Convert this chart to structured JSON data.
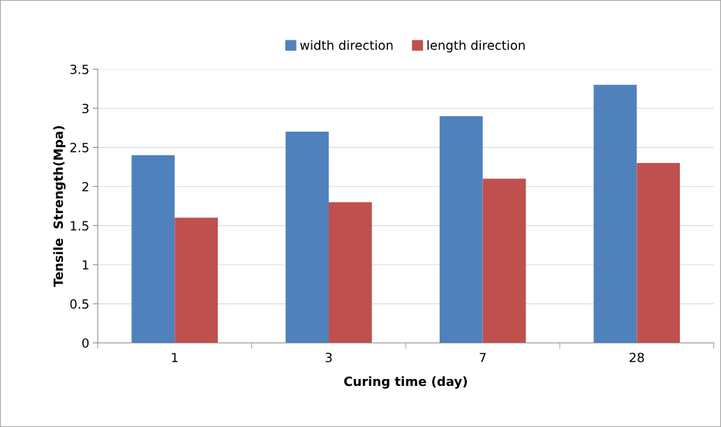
{
  "chart_data": {
    "type": "bar",
    "xlabel": "Curing time (day)",
    "ylabel": "Tensile  Strength(Mpa)",
    "categories": [
      "1",
      "3",
      "7",
      "28"
    ],
    "series": [
      {
        "name": "width direction",
        "color": "#4f81bd",
        "values": [
          2.4,
          2.7,
          2.9,
          3.3
        ]
      },
      {
        "name": "length direction",
        "color": "#c0504d",
        "values": [
          1.6,
          1.8,
          2.1,
          2.3
        ]
      }
    ],
    "ylim": [
      0,
      3.5
    ],
    "yticks": [
      0,
      0.5,
      1,
      1.5,
      2,
      2.5,
      3,
      3.5
    ],
    "grid": "y",
    "legend": "top"
  }
}
